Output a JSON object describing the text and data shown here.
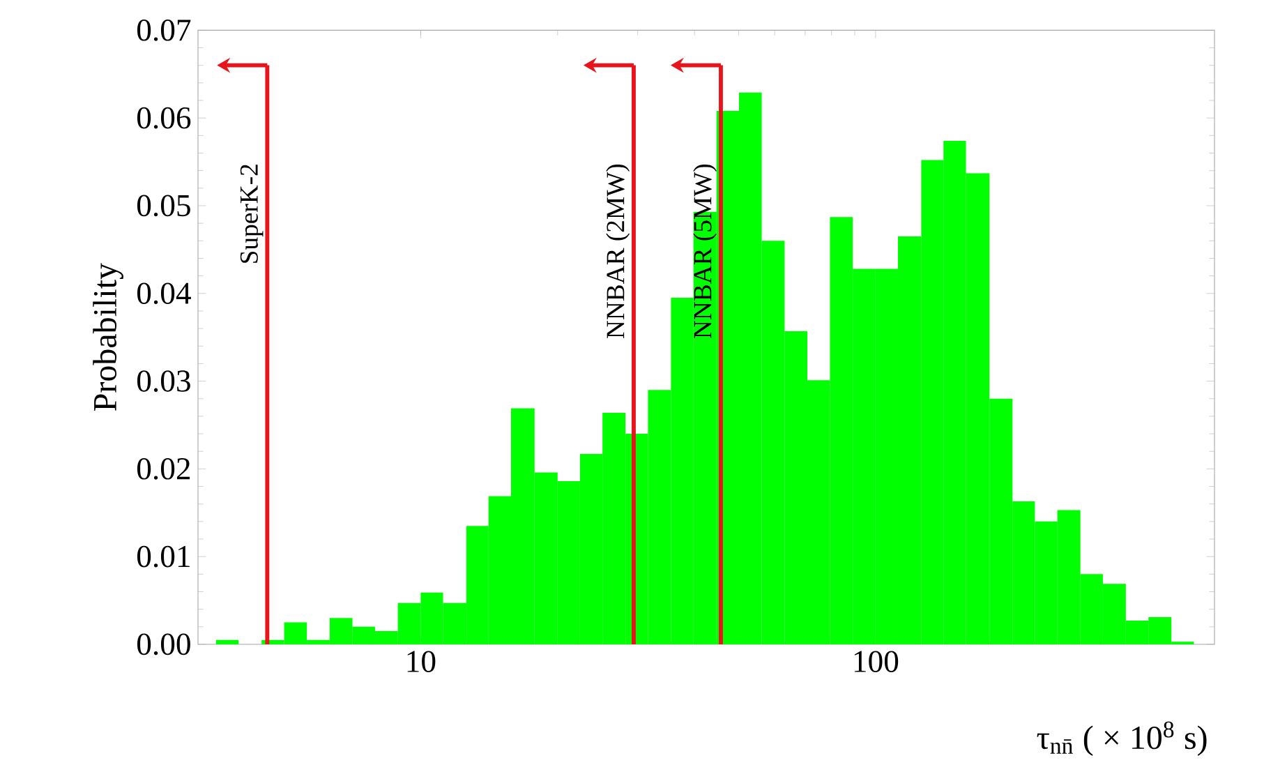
{
  "chart_data": {
    "type": "histogram",
    "xlabel": "τ$_{nn̄}$ ( × 10$^{8}$ s)",
    "ylabel": "Probability",
    "log": "x",
    "color": "#00ff00",
    "bins": [
      3.55,
      3.98,
      4.47,
      5.01,
      5.62,
      6.31,
      7.08,
      7.94,
      8.91,
      10,
      11.2,
      12.6,
      14.1,
      15.8,
      17.8,
      20,
      22.4,
      25.1,
      28.2,
      31.6,
      35.5,
      39.8,
      44.7,
      50.1,
      56.2,
      63.1,
      70.8,
      79.4,
      89.1,
      100,
      112,
      126,
      141,
      158,
      178,
      200,
      224,
      251,
      282,
      316,
      355,
      398,
      447,
      501
    ],
    "values": [
      0.0005,
      0,
      0.0005,
      0.0025,
      0.0005,
      0.003,
      0.002,
      0.0015,
      0.0047,
      0.0059,
      0.0047,
      0.0135,
      0.0169,
      0.0269,
      0.0196,
      0.0186,
      0.0217,
      0.0264,
      0.024,
      0.029,
      0.0395,
      0.0493,
      0.0608,
      0.0629,
      0.046,
      0.0357,
      0.0301,
      0.0487,
      0.0428,
      0.0428,
      0.0465,
      0.0552,
      0.0574,
      0.0537,
      0.028,
      0.0163,
      0.014,
      0.0153,
      0.008,
      0.0069,
      0.0027,
      0.0031,
      0.0003
    ],
    "xlim": [
      3.24,
      556
    ],
    "ylim": [
      0,
      0.07
    ],
    "xticks": [
      10,
      100
    ],
    "yticks": [
      {
        "value": 0,
        "label": "0.00"
      },
      0.01,
      0.02,
      0.03,
      0.04,
      0.05,
      0.06,
      0.07
    ],
    "ref_lines": [
      {
        "axis": "x",
        "value": 4.6,
        "label": "SuperK-2",
        "color": "#e8141c"
      },
      {
        "axis": "x",
        "value": 29.4,
        "label": "NNBAR (2MW)",
        "color": "#e8141c"
      },
      {
        "axis": "x",
        "value": 45.7,
        "label": "NNBAR (5MW)",
        "color": "#e8141c"
      }
    ]
  }
}
